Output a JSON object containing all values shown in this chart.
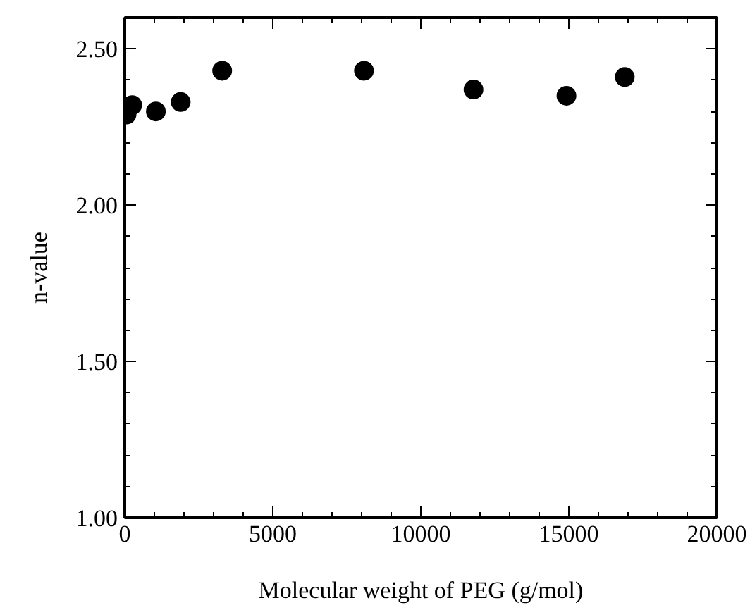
{
  "chart_data": {
    "type": "scatter",
    "xlabel": "Molecular weight of PEG (g/mol)",
    "ylabel": "n-value",
    "x": [
      60,
      250,
      1050,
      1890,
      3290,
      8080,
      11780,
      14920,
      16890
    ],
    "series": [
      {
        "color": "#000000",
        "values": [
          2.29,
          2.32,
          2.3,
          2.33,
          2.43,
          2.43,
          2.37,
          2.35,
          2.41
        ]
      }
    ],
    "xlim": [
      0,
      20000
    ],
    "ylim": [
      1.0,
      2.6
    ],
    "xticks": [
      0,
      5000,
      10000,
      15000,
      20000
    ],
    "yticks": [
      {
        "value": 1.0,
        "label": "1.00"
      },
      {
        "value": 1.5,
        "label": "1.50"
      },
      {
        "value": 2.0,
        "label": "2.00"
      },
      {
        "value": 2.5,
        "label": "2.50"
      }
    ],
    "marker": "circle",
    "grid": false
  }
}
